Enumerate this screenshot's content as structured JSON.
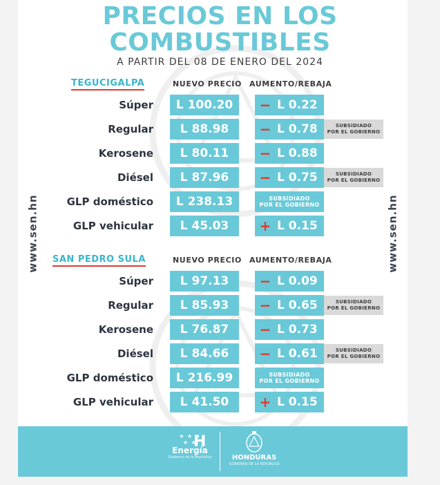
{
  "header": {
    "title_line1": "PRECIOS EN LOS",
    "title_line2": "COMBUSTIBLES",
    "subtitle": "A PARTIR DEL 08 DE ENERO DEL 2024"
  },
  "side_url": "www.sen.hn",
  "columns": {
    "price": "NUEVO PRECIO",
    "change": "AUMENTO/REBAJA"
  },
  "subsidy_text": {
    "line1": "SUBSIDIADO",
    "line2": "POR EL GOBIERNO"
  },
  "colors": {
    "accent": "#69c9d8",
    "city": "#3ab5cb",
    "decrease": "#e0392b",
    "increase": "#e0392b"
  },
  "sections": [
    {
      "city": "TEGUCIGALPA",
      "rows": [
        {
          "fuel": "Súper",
          "price": "L 100.20",
          "sign": "−",
          "amount": "L 0.22",
          "subsidy_tag": false
        },
        {
          "fuel": "Regular",
          "price": "L 88.98",
          "sign": "−",
          "amount": "L 0.78",
          "subsidy_tag": true
        },
        {
          "fuel": "Kerosene",
          "price": "L 80.11",
          "sign": "−",
          "amount": "L 0.88",
          "subsidy_tag": false
        },
        {
          "fuel": "Diésel",
          "price": "L 87.96",
          "sign": "−",
          "amount": "L 0.75",
          "subsidy_tag": true
        },
        {
          "fuel": "GLP doméstico",
          "price": "L 238.13",
          "sign": "",
          "amount": "",
          "subsidy_tag": false
        },
        {
          "fuel": "GLP vehicular",
          "price": "L 45.03",
          "sign": "+",
          "amount": "L 0.15",
          "subsidy_tag": false
        }
      ]
    },
    {
      "city": "SAN PEDRO SULA",
      "rows": [
        {
          "fuel": "Súper",
          "price": "L 97.13",
          "sign": "−",
          "amount": "L 0.09",
          "subsidy_tag": false
        },
        {
          "fuel": "Regular",
          "price": "L 85.93",
          "sign": "−",
          "amount": "L 0.65",
          "subsidy_tag": true
        },
        {
          "fuel": "Kerosene",
          "price": "L 76.87",
          "sign": "−",
          "amount": "L 0.73",
          "subsidy_tag": false
        },
        {
          "fuel": "Diésel",
          "price": "L 84.66",
          "sign": "−",
          "amount": "L 0.61",
          "subsidy_tag": true
        },
        {
          "fuel": "GLP doméstico",
          "price": "L 216.99",
          "sign": "",
          "amount": "",
          "subsidy_tag": false
        },
        {
          "fuel": "GLP vehicular",
          "price": "L 41.50",
          "sign": "+",
          "amount": "L 0.15",
          "subsidy_tag": false
        }
      ]
    }
  ],
  "footer": {
    "energia_mark": "H",
    "energia_name": "Energía",
    "energia_tag": "Gobierno de la República",
    "honduras_name": "HONDURAS",
    "honduras_tag": "GOBIERNO DE LA REPÚBLICA"
  }
}
